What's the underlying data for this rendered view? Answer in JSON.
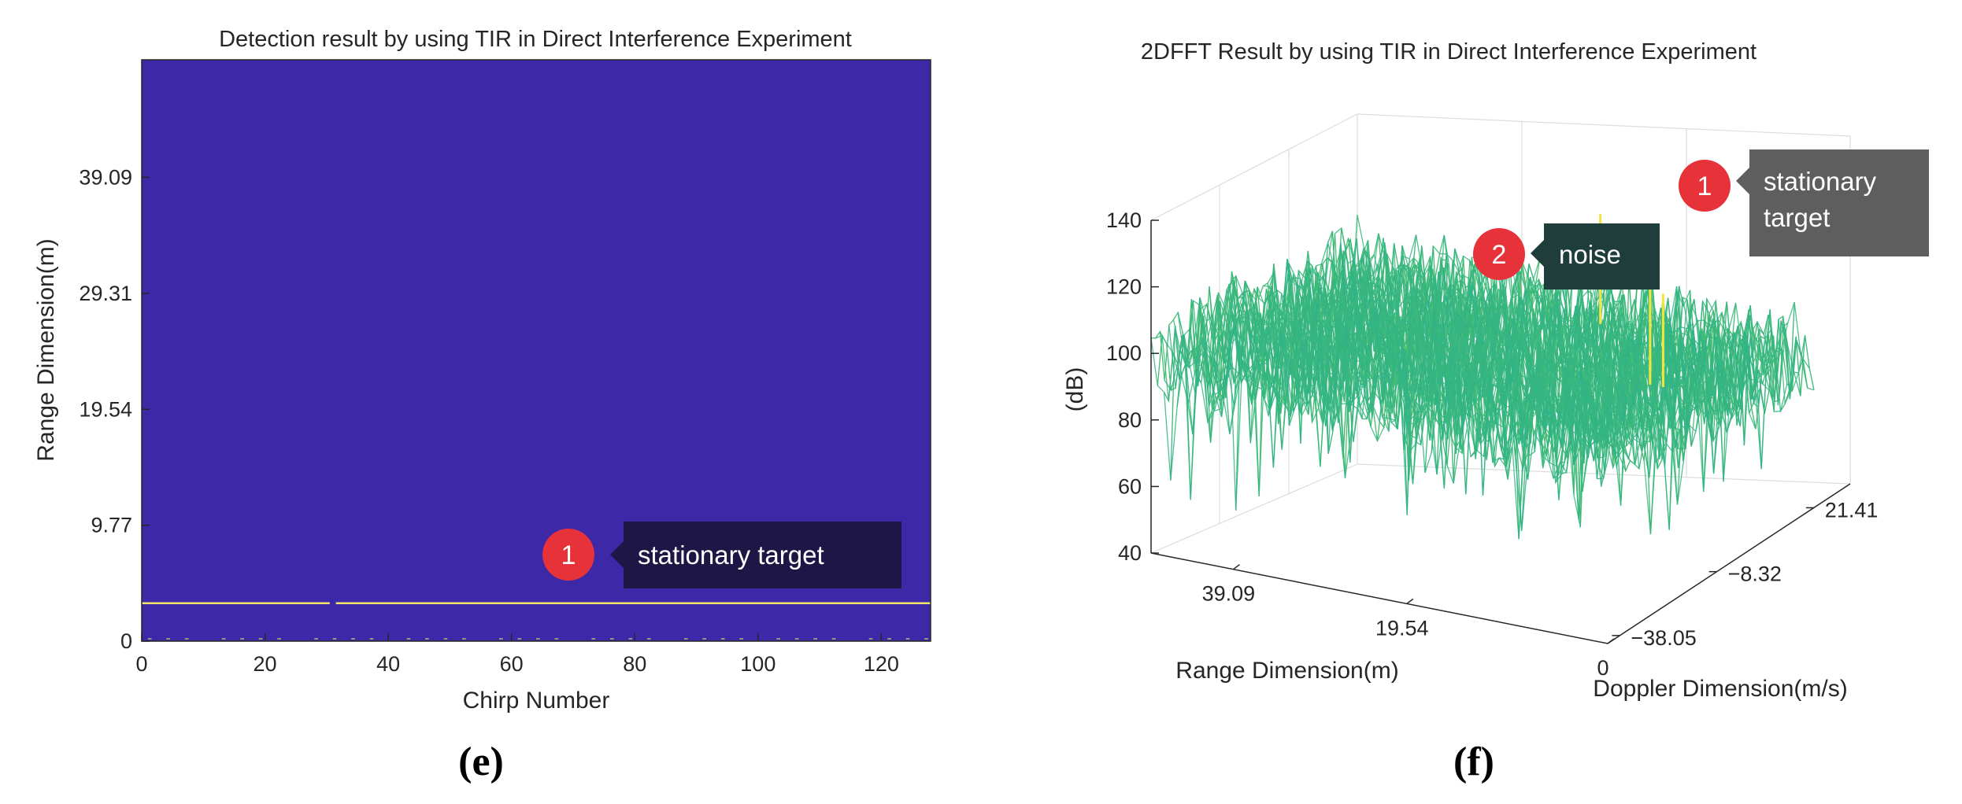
{
  "chart_data": [
    {
      "id": "e",
      "type": "heatmap",
      "panel_label": "(e)",
      "title": "Detection result by using TIR in Direct Interference Experiment",
      "xlabel": "Chirp Number",
      "ylabel": "Range Dimension(m)",
      "xlim": [
        0,
        128
      ],
      "ylim": [
        0,
        49
      ],
      "xticks": [
        0,
        20,
        40,
        60,
        80,
        100,
        120
      ],
      "yticks": [
        0,
        9.77,
        19.54,
        29.31,
        39.09
      ],
      "ytick_labels": [
        "0",
        "9.77",
        "19.54",
        "29.31",
        "39.09"
      ],
      "background_color": "#3d28a8",
      "detection_color": "#f2e56b",
      "detections": [
        {
          "range_m": 3.2,
          "chirp_start": 0,
          "chirp_end": 30.5
        },
        {
          "range_m": 3.2,
          "chirp_start": 31.5,
          "chirp_end": 128
        }
      ],
      "annotations": [
        {
          "badge": "1",
          "text": "stationary target",
          "chirp": 70,
          "range_m": 7.2
        }
      ]
    },
    {
      "id": "f",
      "type": "surface",
      "panel_label": "(f)",
      "title": "2DFFT Result by using TIR in Direct Interference Experiment",
      "zlabel": "(dB)",
      "xlabel": "Range Dimension(m)",
      "ylabel": "Doppler Dimension(m/s)",
      "zlim": [
        40,
        140
      ],
      "zticks": [
        40,
        60,
        80,
        100,
        120,
        140
      ],
      "range_ticks": [
        "39.09",
        "19.54",
        "0"
      ],
      "doppler_ticks": [
        "21.41",
        "−8.32",
        "−38.05"
      ],
      "noise_floor_db": 100,
      "peak_db": 140,
      "annotations": [
        {
          "badge": "1",
          "text_lines": [
            "stationary",
            "target"
          ]
        },
        {
          "badge": "2",
          "text_lines": [
            "noise"
          ]
        }
      ]
    }
  ],
  "colors": {
    "callout_dark": "#1e1745",
    "callout_gray": "#5e5e5e",
    "badge_red": "#e8323a",
    "axis": "#262626"
  }
}
